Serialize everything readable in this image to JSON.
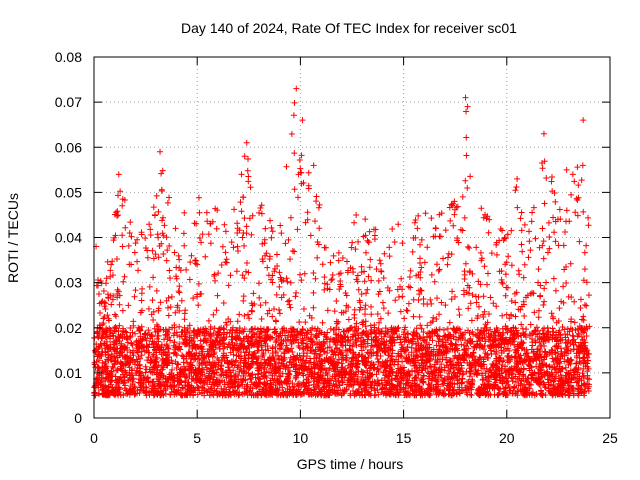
{
  "chart_data": {
    "type": "scatter",
    "title": "Day 140 of 2024, Rate Of TEC Index for receiver sc01",
    "xlabel": "GPS time / hours",
    "ylabel": "ROTI / TECUs",
    "xlim": [
      0,
      25
    ],
    "ylim": [
      0,
      0.08
    ],
    "xticks": [
      "0",
      "5",
      "10",
      "15",
      "20",
      "25"
    ],
    "yticks": [
      "0",
      "0.01",
      "0.02",
      "0.03",
      "0.04",
      "0.05",
      "0.06",
      "0.07",
      "0.08"
    ],
    "grid": true,
    "marker": "+",
    "series_color": "#ff0000",
    "x_range_observed": [
      0,
      24
    ],
    "baseline_band": [
      0.005,
      0.02
    ],
    "activity_envelope": [
      {
        "x": 0.0,
        "y": 0.038
      },
      {
        "x": 0.5,
        "y": 0.03
      },
      {
        "x": 1.0,
        "y": 0.045
      },
      {
        "x": 1.3,
        "y": 0.054
      },
      {
        "x": 2.0,
        "y": 0.04
      },
      {
        "x": 2.5,
        "y": 0.042
      },
      {
        "x": 3.0,
        "y": 0.048
      },
      {
        "x": 3.2,
        "y": 0.059
      },
      {
        "x": 4.0,
        "y": 0.046
      },
      {
        "x": 5.0,
        "y": 0.049
      },
      {
        "x": 6.0,
        "y": 0.047
      },
      {
        "x": 7.0,
        "y": 0.05
      },
      {
        "x": 7.3,
        "y": 0.061
      },
      {
        "x": 8.0,
        "y": 0.048
      },
      {
        "x": 9.0,
        "y": 0.045
      },
      {
        "x": 9.8,
        "y": 0.073
      },
      {
        "x": 10.0,
        "y": 0.067
      },
      {
        "x": 10.5,
        "y": 0.06
      },
      {
        "x": 11.0,
        "y": 0.047
      },
      {
        "x": 12.0,
        "y": 0.04
      },
      {
        "x": 12.7,
        "y": 0.046
      },
      {
        "x": 13.5,
        "y": 0.045
      },
      {
        "x": 14.0,
        "y": 0.045
      },
      {
        "x": 15.0,
        "y": 0.045
      },
      {
        "x": 16.0,
        "y": 0.048
      },
      {
        "x": 17.0,
        "y": 0.045
      },
      {
        "x": 17.5,
        "y": 0.05
      },
      {
        "x": 18.0,
        "y": 0.071
      },
      {
        "x": 18.5,
        "y": 0.05
      },
      {
        "x": 19.0,
        "y": 0.045
      },
      {
        "x": 19.5,
        "y": 0.049
      },
      {
        "x": 20.0,
        "y": 0.04
      },
      {
        "x": 20.5,
        "y": 0.054
      },
      {
        "x": 21.0,
        "y": 0.045
      },
      {
        "x": 21.5,
        "y": 0.05
      },
      {
        "x": 21.8,
        "y": 0.063
      },
      {
        "x": 22.5,
        "y": 0.048
      },
      {
        "x": 23.0,
        "y": 0.05
      },
      {
        "x": 23.5,
        "y": 0.057
      },
      {
        "x": 23.7,
        "y": 0.066
      },
      {
        "x": 24.0,
        "y": 0.045
      }
    ],
    "notable_points": [
      {
        "x": 9.8,
        "y": 0.073
      },
      {
        "x": 10.1,
        "y": 0.066
      },
      {
        "x": 18.0,
        "y": 0.071
      },
      {
        "x": 18.1,
        "y": 0.069
      },
      {
        "x": 23.7,
        "y": 0.066
      },
      {
        "x": 21.8,
        "y": 0.063
      },
      {
        "x": 3.2,
        "y": 0.059
      },
      {
        "x": 7.4,
        "y": 0.061
      },
      {
        "x": 7.3,
        "y": 0.058
      },
      {
        "x": 1.2,
        "y": 0.054
      },
      {
        "x": 20.5,
        "y": 0.053
      },
      {
        "x": 22.9,
        "y": 0.055
      },
      {
        "x": 0.1,
        "y": 0.038
      },
      {
        "x": 12.7,
        "y": 0.045
      },
      {
        "x": 23.2,
        "y": 0.054
      }
    ]
  }
}
